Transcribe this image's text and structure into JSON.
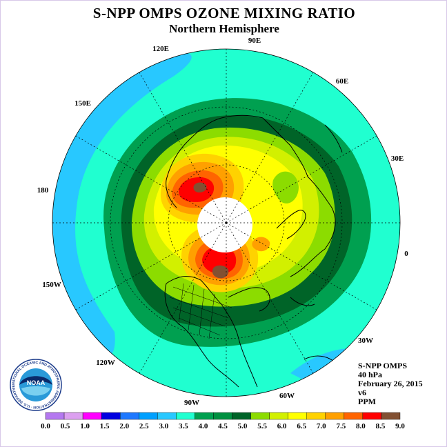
{
  "header": {
    "title": "S-NPP OMPS OZONE MIXING RATIO",
    "subtitle": "Northern Hemisphere"
  },
  "info": {
    "instrument": "S-NPP OMPS",
    "level": "40 hPa",
    "date": "February 26, 2015",
    "version": "v6",
    "units": "PPM"
  },
  "map": {
    "projection": "north-polar-stereographic",
    "longitude_labels": [
      "120E",
      "90E",
      "60E",
      "30E",
      "0",
      "30W",
      "60W",
      "90W",
      "120W",
      "150W",
      "180",
      "150E"
    ],
    "no_data_region": "polar-night-center",
    "field_features": [
      {
        "name": "high-over-siberia",
        "value_range": [
          8.5,
          9.0
        ]
      },
      {
        "name": "high-over-hudson-bay",
        "value_range": [
          8.5,
          9.0
        ]
      },
      {
        "name": "ring-minimum",
        "value_range": [
          4.0,
          5.0
        ]
      },
      {
        "name": "outer-low",
        "value_range": [
          3.0,
          3.5
        ]
      }
    ]
  },
  "colorbar": {
    "tick_labels": [
      "0.0",
      "0.5",
      "1.0",
      "1.5",
      "2.0",
      "2.5",
      "3.0",
      "3.5",
      "4.0",
      "4.5",
      "5.0",
      "5.5",
      "6.0",
      "6.5",
      "7.0",
      "7.5",
      "8.0",
      "8.5",
      "9.0"
    ],
    "colors": [
      "#b478f0",
      "#dca0f0",
      "#ff00ff",
      "#0000e0",
      "#1e78ff",
      "#00a0ff",
      "#28c8ff",
      "#20ffd0",
      "#00a050",
      "#009040",
      "#006428",
      "#8cdc00",
      "#d2f000",
      "#ffff00",
      "#ffd200",
      "#ffa000",
      "#ff6400",
      "#ff0000",
      "#825032"
    ]
  },
  "logo": {
    "name": "noaa-logo",
    "text": "NOAA",
    "ring_text": "NATIONAL OCEANIC AND ATMOSPHERIC ADMINISTRATION · U.S. DEPARTMENT OF COMMERCE"
  }
}
